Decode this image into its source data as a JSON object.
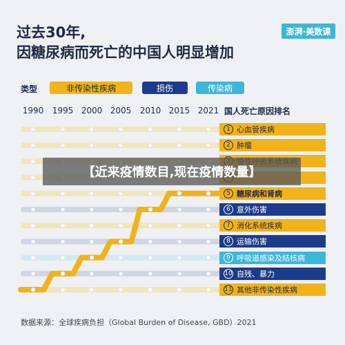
{
  "header": {
    "title_line1": "过去30年,",
    "title_line2": "因糖尿病而死亡的中国人明显增加",
    "logo_text": "澎湃·美数课"
  },
  "legend": {
    "label": "类型",
    "items": [
      {
        "label": "非传染性疾病",
        "color": "#f0b31a",
        "text_color": "#1f2a44"
      },
      {
        "label": "损伤",
        "color": "#1d3b8a",
        "text_color": "#ffffff"
      },
      {
        "label": "传染病",
        "color": "#3db6d8",
        "text_color": "#ffffff"
      }
    ]
  },
  "banner": "【近来疫情数目,现在疫情数量】",
  "source": "数据来源：全球疾病负担（Global Burden of Disease, GBD）2021",
  "chart_data": {
    "type": "line",
    "title": "过去30年,因糖尿病而死亡的中国人明显增加",
    "xlabel": "",
    "ylabel": "国人死亡原因排名",
    "x": [
      1990,
      1995,
      2000,
      2005,
      2010,
      2015,
      2021
    ],
    "ranks_2021": [
      {
        "rank": 1,
        "label": "心血管疾病",
        "type": "非传染性疾病"
      },
      {
        "rank": 2,
        "label": "肿瘤",
        "type": "非传染性疾病"
      },
      {
        "rank": 3,
        "label": "慢性呼吸系统疾病",
        "type": "非传染性疾病"
      },
      {
        "rank": 4,
        "label": "",
        "type": "非传染性疾病"
      },
      {
        "rank": 5,
        "label": "糖尿病和肾病",
        "type": "非传染性疾病"
      },
      {
        "rank": 6,
        "label": "意外伤害",
        "type": "损伤"
      },
      {
        "rank": 7,
        "label": "消化系统疾病",
        "type": "非传染性疾病"
      },
      {
        "rank": 8,
        "label": "运输伤害",
        "type": "损伤"
      },
      {
        "rank": 9,
        "label": "呼吸道感染及结核病",
        "type": "传染病"
      },
      {
        "rank": 10,
        "label": "自残、暴力",
        "type": "损伤"
      },
      {
        "rank": 11,
        "label": "其他非传染性疾病",
        "type": "非传染性疾病"
      }
    ],
    "series": [
      {
        "name": "糖尿病和肾病",
        "values": [
          11,
          10,
          9,
          8,
          6,
          5,
          5
        ]
      }
    ],
    "ylim": [
      11,
      1
    ]
  }
}
